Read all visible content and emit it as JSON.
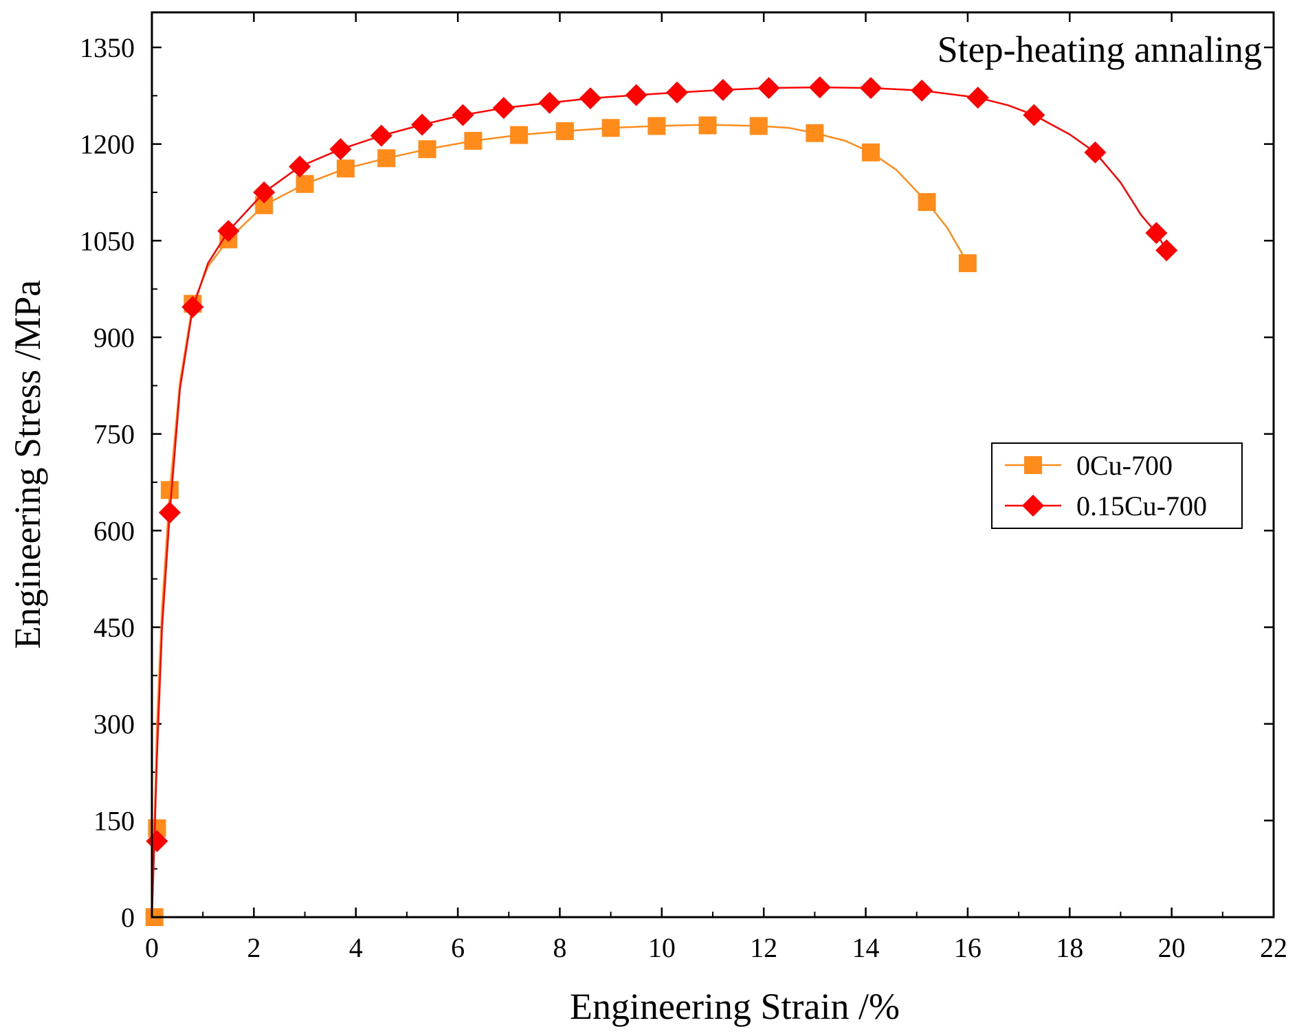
{
  "chart_data": {
    "type": "line",
    "title": "",
    "annotation": "Step-heating annaling",
    "xlabel": "Engineering Strain /%",
    "ylabel": "Engineering Stress /MPa",
    "xlim": [
      0,
      22
    ],
    "ylim": [
      0,
      1400
    ],
    "xticks": [
      0,
      2,
      4,
      6,
      8,
      10,
      12,
      14,
      16,
      18,
      20,
      22
    ],
    "yticks": [
      0,
      150,
      300,
      450,
      600,
      750,
      900,
      1050,
      1200,
      1350
    ],
    "grid": false,
    "legend_position": "right-middle",
    "series": [
      {
        "name": "0Cu-700",
        "color": "#ff8c1a",
        "marker": "square",
        "curve": [
          [
            0,
            0
          ],
          [
            0.05,
            140
          ],
          [
            0.1,
            300
          ],
          [
            0.2,
            480
          ],
          [
            0.35,
            660
          ],
          [
            0.55,
            830
          ],
          [
            0.8,
            950
          ],
          [
            1.1,
            1010
          ],
          [
            1.5,
            1052
          ],
          [
            2.2,
            1105
          ],
          [
            3.0,
            1138
          ],
          [
            3.8,
            1162
          ],
          [
            4.6,
            1178
          ],
          [
            5.4,
            1192
          ],
          [
            6.3,
            1205
          ],
          [
            7.2,
            1214
          ],
          [
            8.1,
            1220
          ],
          [
            9.0,
            1225
          ],
          [
            9.9,
            1228
          ],
          [
            10.9,
            1230
          ],
          [
            11.9,
            1228
          ],
          [
            12.5,
            1225
          ],
          [
            13.0,
            1217
          ],
          [
            13.6,
            1205
          ],
          [
            14.1,
            1187
          ],
          [
            14.6,
            1160
          ],
          [
            15.2,
            1110
          ],
          [
            15.6,
            1070
          ],
          [
            16.0,
            1015
          ]
        ],
        "markers": [
          [
            0.05,
            0
          ],
          [
            0.1,
            138
          ],
          [
            0.35,
            663
          ],
          [
            0.8,
            952
          ],
          [
            1.5,
            1052
          ],
          [
            2.2,
            1105
          ],
          [
            3.0,
            1138
          ],
          [
            3.8,
            1162
          ],
          [
            4.6,
            1178
          ],
          [
            5.4,
            1192
          ],
          [
            6.3,
            1205
          ],
          [
            7.2,
            1214
          ],
          [
            8.1,
            1220
          ],
          [
            9.0,
            1225
          ],
          [
            9.9,
            1228
          ],
          [
            10.9,
            1229
          ],
          [
            11.9,
            1228
          ],
          [
            13.0,
            1217
          ],
          [
            14.1,
            1187
          ],
          [
            15.2,
            1110
          ],
          [
            16.0,
            1015
          ]
        ]
      },
      {
        "name": "0.15Cu-700",
        "color": "#ff0000",
        "marker": "diamond",
        "curve": [
          [
            0,
            0
          ],
          [
            0.05,
            120
          ],
          [
            0.1,
            250
          ],
          [
            0.2,
            450
          ],
          [
            0.35,
            628
          ],
          [
            0.55,
            820
          ],
          [
            0.8,
            945
          ],
          [
            1.1,
            1015
          ],
          [
            1.5,
            1065
          ],
          [
            2.2,
            1125
          ],
          [
            2.9,
            1165
          ],
          [
            3.7,
            1192
          ],
          [
            4.5,
            1213
          ],
          [
            5.3,
            1230
          ],
          [
            6.1,
            1245
          ],
          [
            6.9,
            1256
          ],
          [
            7.8,
            1264
          ],
          [
            8.6,
            1271
          ],
          [
            9.5,
            1276
          ],
          [
            10.3,
            1280
          ],
          [
            11.2,
            1284
          ],
          [
            12.1,
            1287
          ],
          [
            13.1,
            1288
          ],
          [
            14.1,
            1287
          ],
          [
            15.1,
            1283
          ],
          [
            16.2,
            1272
          ],
          [
            16.8,
            1260
          ],
          [
            17.3,
            1245
          ],
          [
            18.0,
            1215
          ],
          [
            18.5,
            1187
          ],
          [
            19.0,
            1140
          ],
          [
            19.4,
            1090
          ],
          [
            19.7,
            1062
          ],
          [
            19.9,
            1035
          ]
        ],
        "markers": [
          [
            0.1,
            118
          ],
          [
            0.35,
            628
          ],
          [
            0.8,
            947
          ],
          [
            1.5,
            1065
          ],
          [
            2.2,
            1125
          ],
          [
            2.9,
            1165
          ],
          [
            3.7,
            1192
          ],
          [
            4.5,
            1213
          ],
          [
            5.3,
            1230
          ],
          [
            6.1,
            1245
          ],
          [
            6.9,
            1256
          ],
          [
            7.8,
            1264
          ],
          [
            8.6,
            1271
          ],
          [
            9.5,
            1276
          ],
          [
            10.3,
            1280
          ],
          [
            11.2,
            1284
          ],
          [
            12.1,
            1287
          ],
          [
            13.1,
            1288
          ],
          [
            14.1,
            1287
          ],
          [
            15.1,
            1283
          ],
          [
            16.2,
            1272
          ],
          [
            17.3,
            1245
          ],
          [
            18.5,
            1187
          ],
          [
            19.7,
            1062
          ],
          [
            19.9,
            1035
          ]
        ]
      }
    ]
  }
}
